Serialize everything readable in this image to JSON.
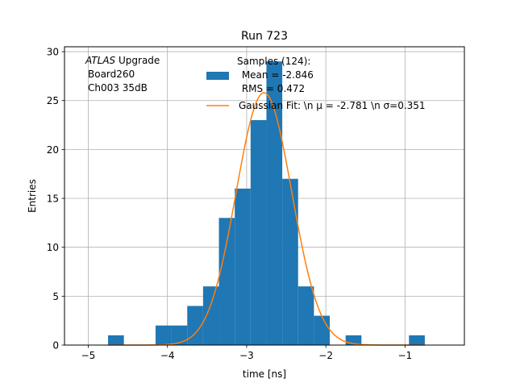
{
  "chart_data": {
    "type": "bar",
    "title": "Run 723",
    "xlabel": "time [ns]",
    "ylabel": "Entries",
    "xlim": [
      -5.3,
      -0.25
    ],
    "ylim": [
      0,
      30.5
    ],
    "xticks": [
      -5,
      -4,
      -3,
      -2,
      -1
    ],
    "yticks": [
      0,
      5,
      10,
      15,
      20,
      25,
      30
    ],
    "xtick_labels": [
      "−5",
      "−4",
      "−3",
      "−2",
      "−1"
    ],
    "ytick_labels": [
      "0",
      "5",
      "10",
      "15",
      "20",
      "25",
      "30"
    ],
    "grid": true,
    "annotation": {
      "line1_italic": "ATLAS",
      "line1_rest": " Upgrade",
      "line2": "Board260",
      "line3": "Ch003 35dB"
    },
    "legend": {
      "placement": "top-right",
      "hist_lines": [
        "Samples (124):",
        " Mean = -2.846",
        " RMS = 0.472"
      ],
      "fit_label": "Gaussian Fit: \\n μ = -2.781 \\n σ=0.351"
    },
    "histogram": {
      "color": "#1f77b4",
      "bin_edges": [
        -4.75,
        -4.55,
        -4.35,
        -4.15,
        -3.95,
        -3.75,
        -3.55,
        -3.35,
        -3.15,
        -2.95,
        -2.75,
        -2.55,
        -2.35,
        -2.15,
        -1.95,
        -1.75,
        -1.55,
        -1.35,
        -1.15,
        -0.95,
        -0.75
      ],
      "counts": [
        1,
        0,
        0,
        2,
        2,
        4,
        6,
        13,
        16,
        23,
        29,
        17,
        6,
        3,
        0,
        1,
        0,
        0,
        0,
        1
      ]
    },
    "fit": {
      "color": "#ff7f0e",
      "amplitude": 25.8,
      "mu": -2.781,
      "sigma": 0.351,
      "x_range": [
        -4.75,
        -0.75
      ]
    }
  }
}
